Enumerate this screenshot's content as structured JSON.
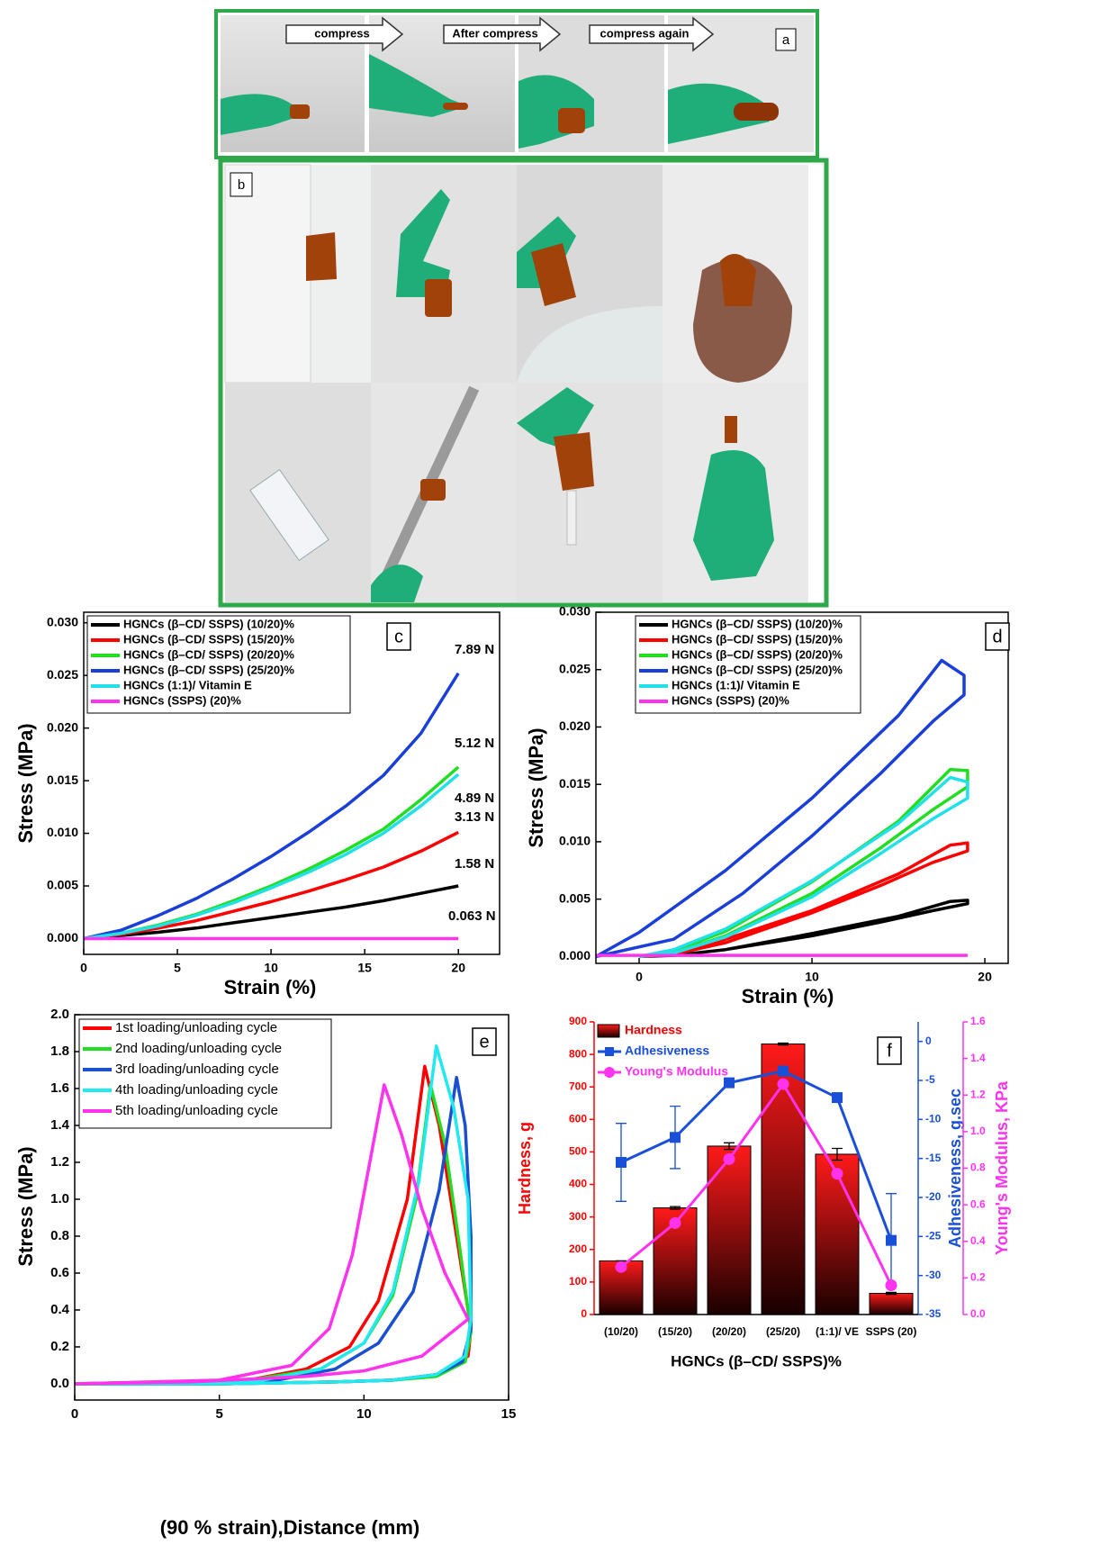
{
  "panel_a": {
    "label": "a",
    "steps": [
      "compress",
      "After compress",
      "compress again"
    ]
  },
  "panel_b": {
    "label": "b"
  },
  "chart_data": [
    {
      "type": "line",
      "label": "c",
      "xlabel": "Strain (%)",
      "ylabel": "Stress (MPa)",
      "xlim": [
        0,
        22.2
      ],
      "xticks": [
        0,
        5,
        10,
        15,
        20
      ],
      "ylim": [
        -0.0015,
        0.031
      ],
      "yticks": [
        {
          "value": 0,
          "label": "0.000"
        },
        {
          "value": 0.005,
          "label": "0.005"
        },
        {
          "value": 0.01,
          "label": "0.010"
        },
        {
          "value": 0.015,
          "label": "0.015"
        },
        {
          "value": 0.02,
          "label": "0.020"
        },
        {
          "value": 0.025,
          "label": "0.025"
        },
        {
          "value": 0.03,
          "label": "0.030"
        }
      ],
      "x": [
        0,
        2,
        4,
        6,
        8,
        10,
        12,
        14,
        16,
        18,
        20
      ],
      "series": [
        {
          "name": "HGNCs (β–CD/ SSPS) (10/20)%",
          "color": "#000000",
          "values": [
            0,
            0.0003,
            0.0006,
            0.001,
            0.0015,
            0.002,
            0.0025,
            0.003,
            0.0036,
            0.0043,
            0.005
          ]
        },
        {
          "name": "HGNCs (β–CD/ SSPS) (15/20)%",
          "color": "#ff0000",
          "values": [
            0,
            0.0004,
            0.001,
            0.0017,
            0.0026,
            0.0035,
            0.0045,
            0.0056,
            0.0068,
            0.0083,
            0.0101
          ]
        },
        {
          "name": "HGNCs (β–CD/ SSPS) (20/20)%",
          "color": "#22dd22",
          "values": [
            0,
            0.0005,
            0.0013,
            0.0023,
            0.0036,
            0.005,
            0.0066,
            0.0084,
            0.0104,
            0.0132,
            0.0163
          ]
        },
        {
          "name": "HGNCs (β–CD/ SSPS) (25/20)%",
          "color": "#1a3fd8",
          "values": [
            0,
            0.0008,
            0.0022,
            0.0038,
            0.0057,
            0.0078,
            0.0101,
            0.0126,
            0.0155,
            0.0195,
            0.0252
          ]
        },
        {
          "name": "HGNCs (1:1)/ Vitamin E",
          "color": "#22e0e8",
          "values": [
            0,
            0.0005,
            0.0012,
            0.0022,
            0.0034,
            0.0048,
            0.0063,
            0.008,
            0.01,
            0.0126,
            0.0156
          ]
        },
        {
          "name": "HGNCs (SSPS) (20)%",
          "color": "#ff33ee",
          "values": [
            0,
            0,
            0,
            0,
            0,
            0,
            0,
            0,
            0,
            0,
            0
          ]
        }
      ],
      "annotations": [
        "7.89 N",
        "5.12 N",
        "4.89 N",
        "3.13 N",
        "1.58 N",
        "0.063 N"
      ]
    },
    {
      "type": "line",
      "label": "d",
      "xlabel": "Strain (%)",
      "ylabel": "Stress (MPa)",
      "xlim": [
        -2.5,
        21.35
      ],
      "xticks": [
        0,
        10,
        20
      ],
      "ylim": [
        -0.0006,
        0.03
      ],
      "yticks": [
        {
          "value": 0,
          "label": "0.000"
        },
        {
          "value": 0.005,
          "label": "0.005"
        },
        {
          "value": 0.01,
          "label": "0.010"
        },
        {
          "value": 0.015,
          "label": "0.015"
        },
        {
          "value": 0.02,
          "label": "0.020"
        },
        {
          "value": 0.025,
          "label": "0.025"
        },
        {
          "value": 0.03,
          "label": "0.030"
        }
      ],
      "series": [
        {
          "name": "HGNCs (β–CD/ SSPS) (10/20)%",
          "color": "#000000",
          "x": [
            0,
            2,
            5,
            10,
            15,
            18,
            19,
            19,
            17,
            14,
            10,
            5,
            2,
            0
          ],
          "values": [
            0,
            0.0001,
            0.0006,
            0.002,
            0.0035,
            0.0048,
            0.0049,
            0.0046,
            0.004,
            0.003,
            0.0018,
            0.0006,
            0.0001,
            0
          ]
        },
        {
          "name": "HGNCs (β–CD/ SSPS) (15/20)%",
          "color": "#ff0000",
          "x": [
            0,
            2,
            5,
            10,
            15,
            18,
            19,
            19,
            17,
            14,
            10,
            5,
            2,
            0
          ],
          "values": [
            0,
            0.0002,
            0.0015,
            0.004,
            0.0072,
            0.0097,
            0.0099,
            0.0092,
            0.0082,
            0.0062,
            0.0038,
            0.0012,
            0.0002,
            0
          ]
        },
        {
          "name": "HGNCs (β–CD/ SSPS) (20/20)%",
          "color": "#22dd22",
          "x": [
            0,
            2,
            5,
            10,
            15,
            18,
            19,
            19,
            17,
            14,
            10,
            5,
            2,
            0
          ],
          "values": [
            0,
            0.0005,
            0.0022,
            0.0065,
            0.0118,
            0.0163,
            0.0162,
            0.0148,
            0.0128,
            0.0095,
            0.0055,
            0.0018,
            0.0003,
            0
          ]
        },
        {
          "name": "HGNCs (β–CD/ SSPS) (25/20)%",
          "color": "#1a3fd8",
          "x": [
            -2.5,
            0,
            5,
            10,
            15,
            17.5,
            18.8,
            18.8,
            17,
            14,
            10,
            6,
            2,
            -2.5
          ],
          "values": [
            0,
            0.0021,
            0.0075,
            0.0138,
            0.021,
            0.0258,
            0.0245,
            0.0228,
            0.0205,
            0.016,
            0.0105,
            0.0055,
            0.0015,
            0
          ]
        },
        {
          "name": "HGNCs (1:1)/ Vitamin E",
          "color": "#22e0e8",
          "x": [
            0,
            2,
            5,
            10,
            15,
            18,
            19,
            19,
            17,
            14,
            10,
            5,
            2,
            0
          ],
          "values": [
            0,
            0.0006,
            0.0024,
            0.0066,
            0.0116,
            0.0156,
            0.0152,
            0.0138,
            0.012,
            0.009,
            0.0052,
            0.0017,
            0.0003,
            0
          ]
        },
        {
          "name": "HGNCs (SSPS) (20)%",
          "color": "#ff33ee",
          "x": [
            -2.5,
            19
          ],
          "values": [
            0.0001,
            0.0001
          ]
        }
      ]
    },
    {
      "type": "line",
      "label": "e",
      "xlabel": "(90 % strain),Distance (mm)",
      "ylabel": "Stress (MPa)",
      "xlim": [
        0,
        15
      ],
      "xticks": [
        0,
        5,
        10,
        15
      ],
      "ylim": [
        -0.088,
        2.0
      ],
      "yticks": [
        {
          "value": 0,
          "label": "0.0"
        },
        0.2,
        0.4,
        0.6,
        0.8,
        {
          "value": 1,
          "label": "1.0"
        },
        1.2,
        1.4,
        1.6,
        1.8,
        {
          "value": 2,
          "label": "2.0"
        }
      ],
      "series": [
        {
          "name": "1st  loading/unloading cycle",
          "color": "#ff0000",
          "x": [
            0,
            6,
            8,
            9.5,
            10.5,
            11.5,
            12.1,
            12.6,
            13.2,
            13.7,
            13.6,
            12.5,
            11,
            9,
            5,
            0
          ],
          "values": [
            0,
            0.02,
            0.08,
            0.2,
            0.45,
            1.0,
            1.72,
            1.4,
            0.8,
            0.3,
            0.15,
            0.05,
            0.02,
            0.01,
            0,
            0
          ]
        },
        {
          "name": "2nd  loading/unloading cycle",
          "color": "#22dd22",
          "x": [
            0,
            6,
            8.5,
            10,
            11,
            11.8,
            12.3,
            12.8,
            13.3,
            13.7,
            13.5,
            12.5,
            11,
            9,
            5,
            0
          ],
          "values": [
            0,
            0.02,
            0.08,
            0.22,
            0.48,
            1.0,
            1.62,
            1.3,
            0.75,
            0.28,
            0.12,
            0.04,
            0.02,
            0.01,
            0,
            0
          ]
        },
        {
          "name": "3rd  loading/unloading cycle",
          "color": "#1a4fd0",
          "x": [
            0,
            7,
            9,
            10.5,
            11.7,
            12.6,
            13.2,
            13.5,
            13.7,
            13.7,
            13.4,
            12.5,
            11,
            9,
            5,
            0
          ],
          "values": [
            0,
            0.02,
            0.08,
            0.22,
            0.5,
            1.05,
            1.66,
            1.4,
            0.8,
            0.3,
            0.12,
            0.05,
            0.02,
            0.01,
            0,
            0
          ]
        },
        {
          "name": "4th  loading/unloading cycle",
          "color": "#22e8f0",
          "x": [
            0,
            6.5,
            8.5,
            10,
            11,
            11.9,
            12.5,
            13.1,
            13.6,
            13.7,
            13.5,
            12.5,
            11,
            9,
            5,
            0
          ],
          "values": [
            0,
            0.02,
            0.08,
            0.22,
            0.5,
            1.1,
            1.83,
            1.5,
            1.0,
            0.35,
            0.15,
            0.05,
            0.02,
            0.01,
            0,
            0
          ]
        },
        {
          "name": "5th  loading/unloading cycle",
          "color": "#ff33ee",
          "x": [
            0,
            5,
            7.5,
            8.8,
            9.6,
            10.2,
            10.7,
            11.3,
            12,
            12.8,
            13.6,
            12,
            10,
            8,
            4,
            0
          ],
          "values": [
            0,
            0.02,
            0.1,
            0.3,
            0.7,
            1.2,
            1.62,
            1.35,
            0.95,
            0.6,
            0.35,
            0.15,
            0.07,
            0.04,
            0.01,
            0
          ]
        }
      ]
    },
    {
      "type": "bar",
      "label": "f",
      "xlabel": "HGNCs (β–CD/ SSPS)%",
      "ylabel": "Hardness, g",
      "y2label": "Adhesiveness, g.sec",
      "y3label": "Young's Modulus, KPa",
      "categories": [
        "(10/20)",
        "(15/20)",
        "(20/20)",
        "(25/20)",
        "(1:1)/ VE",
        "SSPS (20)"
      ],
      "ylim": [
        0,
        900
      ],
      "yticks": [
        0,
        100,
        200,
        300,
        400,
        500,
        600,
        700,
        800,
        900
      ],
      "y2lim": [
        -35,
        2.5
      ],
      "y2ticks": [
        0,
        -5,
        -10,
        -15,
        -20,
        -25,
        -30,
        -35
      ],
      "y3lim": [
        0,
        1.6
      ],
      "y3ticks": [
        {
          "value": 0,
          "label": "0.0"
        },
        0.2,
        0.4,
        0.6,
        0.8,
        {
          "value": 1,
          "label": "1.0"
        },
        1.2,
        1.4,
        1.6
      ],
      "series": [
        {
          "name": "Hardness",
          "type": "bar",
          "color": "#ff0000",
          "values": [
            165,
            328,
            518,
            832,
            493,
            65
          ],
          "errors": [
            0,
            4,
            10,
            3,
            18,
            3
          ]
        },
        {
          "name": "Adhesiveness",
          "type": "line",
          "axis": "y2",
          "marker": "square",
          "color": "#1a4fd8",
          "values": [
            -15.5,
            -12.3,
            -5.3,
            -3.8,
            -7.2,
            -25.5
          ],
          "errors": [
            5,
            4,
            0.5,
            0.3,
            0.5,
            6
          ]
        },
        {
          "name": "Young's Modulus",
          "type": "line",
          "axis": "y3",
          "marker": "circle",
          "color": "#ff33ee",
          "values": [
            0.26,
            0.5,
            0.85,
            1.26,
            0.77,
            0.16
          ]
        }
      ]
    }
  ]
}
